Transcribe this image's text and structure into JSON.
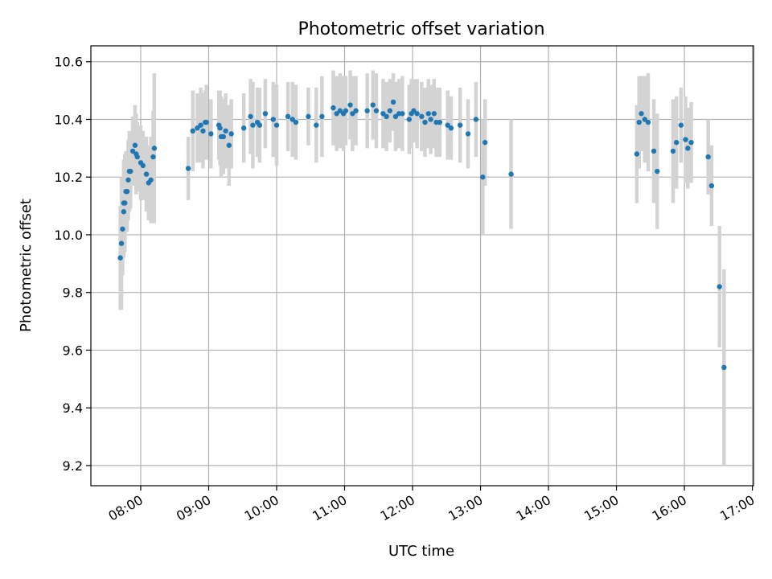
{
  "chart_data": {
    "type": "scatter",
    "title": "Photometric offset variation",
    "xlabel": "UTC time",
    "ylabel": "Photometric offset",
    "xlim": [
      "07:16",
      "17:01"
    ],
    "ylim": [
      9.13,
      10.655
    ],
    "x_ticks": [
      "08:00",
      "09:00",
      "10:00",
      "11:00",
      "12:00",
      "13:00",
      "14:00",
      "15:00",
      "16:00",
      "17:00"
    ],
    "y_ticks": [
      9.2,
      9.4,
      9.6,
      9.8,
      10.0,
      10.2,
      10.4,
      10.6
    ],
    "grid": true,
    "point_color": "#1f77b4",
    "errorbar_color": "#d3d3d3",
    "series": [
      {
        "points": [
          {
            "t": "07:42",
            "y": 9.92,
            "err": 0.18
          },
          {
            "t": "07:43",
            "y": 9.97,
            "err": 0.23
          },
          {
            "t": "07:44",
            "y": 10.02,
            "err": 0.16
          },
          {
            "t": "07:45",
            "y": 10.08,
            "err": 0.16
          },
          {
            "t": "07:45",
            "y": 10.11,
            "err": 0.15
          },
          {
            "t": "07:46",
            "y": 10.11,
            "err": 0.17
          },
          {
            "t": "07:47",
            "y": 10.15,
            "err": 0.14
          },
          {
            "t": "07:48",
            "y": 10.15,
            "err": 0.14
          },
          {
            "t": "07:49",
            "y": 10.19,
            "err": 0.14
          },
          {
            "t": "07:50",
            "y": 10.22,
            "err": 0.14
          },
          {
            "t": "07:51",
            "y": 10.22,
            "err": 0.13
          },
          {
            "t": "07:53",
            "y": 10.29,
            "err": 0.12
          },
          {
            "t": "07:55",
            "y": 10.31,
            "err": 0.14
          },
          {
            "t": "07:56",
            "y": 10.28,
            "err": 0.14
          },
          {
            "t": "07:57",
            "y": 10.27,
            "err": 0.12
          },
          {
            "t": "08:00",
            "y": 10.25,
            "err": 0.13
          },
          {
            "t": "08:02",
            "y": 10.24,
            "err": 0.12
          },
          {
            "t": "08:05",
            "y": 10.21,
            "err": 0.13
          },
          {
            "t": "08:07",
            "y": 10.18,
            "err": 0.13
          },
          {
            "t": "08:09",
            "y": 10.19,
            "err": 0.15
          },
          {
            "t": "08:11",
            "y": 10.27,
            "err": 0.16
          },
          {
            "t": "08:12",
            "y": 10.3,
            "err": 0.26
          },
          {
            "t": "08:42",
            "y": 10.23,
            "err": 0.11
          },
          {
            "t": "08:46",
            "y": 10.36,
            "err": 0.14
          },
          {
            "t": "08:50",
            "y": 10.37,
            "err": 0.12
          },
          {
            "t": "08:53",
            "y": 10.38,
            "err": 0.13
          },
          {
            "t": "08:55",
            "y": 10.36,
            "err": 0.13
          },
          {
            "t": "08:57",
            "y": 10.39,
            "err": 0.11
          },
          {
            "t": "08:58",
            "y": 10.39,
            "err": 0.13
          },
          {
            "t": "09:02",
            "y": 10.35,
            "err": 0.12
          },
          {
            "t": "09:09",
            "y": 10.38,
            "err": 0.12
          },
          {
            "t": "09:10",
            "y": 10.37,
            "err": 0.13
          },
          {
            "t": "09:11",
            "y": 10.34,
            "err": 0.14
          },
          {
            "t": "09:13",
            "y": 10.34,
            "err": 0.13
          },
          {
            "t": "09:15",
            "y": 10.36,
            "err": 0.13
          },
          {
            "t": "09:18",
            "y": 10.31,
            "err": 0.14
          },
          {
            "t": "09:20",
            "y": 10.35,
            "err": 0.12
          },
          {
            "t": "09:31",
            "y": 10.37,
            "err": 0.12
          },
          {
            "t": "09:37",
            "y": 10.41,
            "err": 0.13
          },
          {
            "t": "09:39",
            "y": 10.38,
            "err": 0.15
          },
          {
            "t": "09:43",
            "y": 10.39,
            "err": 0.12
          },
          {
            "t": "09:45",
            "y": 10.38,
            "err": 0.13
          },
          {
            "t": "09:50",
            "y": 10.42,
            "err": 0.12
          },
          {
            "t": "09:57",
            "y": 10.4,
            "err": 0.13
          },
          {
            "t": "10:00",
            "y": 10.38,
            "err": 0.14
          },
          {
            "t": "10:10",
            "y": 10.41,
            "err": 0.12
          },
          {
            "t": "10:14",
            "y": 10.4,
            "err": 0.13
          },
          {
            "t": "10:17",
            "y": 10.39,
            "err": 0.13
          },
          {
            "t": "10:28",
            "y": 10.41,
            "err": 0.1
          },
          {
            "t": "10:35",
            "y": 10.38,
            "err": 0.13
          },
          {
            "t": "10:40",
            "y": 10.41,
            "err": 0.14
          },
          {
            "t": "10:50",
            "y": 10.44,
            "err": 0.13
          },
          {
            "t": "10:53",
            "y": 10.42,
            "err": 0.13
          },
          {
            "t": "10:56",
            "y": 10.43,
            "err": 0.13
          },
          {
            "t": "10:59",
            "y": 10.42,
            "err": 0.13
          },
          {
            "t": "11:01",
            "y": 10.43,
            "err": 0.12
          },
          {
            "t": "11:05",
            "y": 10.45,
            "err": 0.12
          },
          {
            "t": "11:07",
            "y": 10.42,
            "err": 0.13
          },
          {
            "t": "11:10",
            "y": 10.43,
            "err": 0.12
          },
          {
            "t": "11:20",
            "y": 10.43,
            "err": 0.13
          },
          {
            "t": "11:25",
            "y": 10.45,
            "err": 0.12
          },
          {
            "t": "11:28",
            "y": 10.43,
            "err": 0.13
          },
          {
            "t": "11:34",
            "y": 10.42,
            "err": 0.12
          },
          {
            "t": "11:37",
            "y": 10.41,
            "err": 0.12
          },
          {
            "t": "11:40",
            "y": 10.43,
            "err": 0.11
          },
          {
            "t": "11:43",
            "y": 10.46,
            "err": 0.1
          },
          {
            "t": "11:45",
            "y": 10.41,
            "err": 0.12
          },
          {
            "t": "11:48",
            "y": 10.42,
            "err": 0.12
          },
          {
            "t": "11:51",
            "y": 10.42,
            "err": 0.13
          },
          {
            "t": "11:57",
            "y": 10.4,
            "err": 0.12
          },
          {
            "t": "11:59",
            "y": 10.42,
            "err": 0.12
          },
          {
            "t": "12:01",
            "y": 10.43,
            "err": 0.11
          },
          {
            "t": "12:04",
            "y": 10.42,
            "err": 0.12
          },
          {
            "t": "12:08",
            "y": 10.41,
            "err": 0.12
          },
          {
            "t": "12:11",
            "y": 10.39,
            "err": 0.12
          },
          {
            "t": "12:14",
            "y": 10.42,
            "err": 0.12
          },
          {
            "t": "12:16",
            "y": 10.4,
            "err": 0.12
          },
          {
            "t": "12:19",
            "y": 10.42,
            "err": 0.12
          },
          {
            "t": "12:21",
            "y": 10.39,
            "err": 0.12
          },
          {
            "t": "12:24",
            "y": 10.39,
            "err": 0.12
          },
          {
            "t": "12:31",
            "y": 10.38,
            "err": 0.12
          },
          {
            "t": "12:34",
            "y": 10.37,
            "err": 0.11
          },
          {
            "t": "12:42",
            "y": 10.38,
            "err": 0.13
          },
          {
            "t": "12:49",
            "y": 10.35,
            "err": 0.12
          },
          {
            "t": "12:56",
            "y": 10.4,
            "err": 0.13
          },
          {
            "t": "13:02",
            "y": 10.2,
            "err": 0.2
          },
          {
            "t": "13:04",
            "y": 10.32,
            "err": 0.15
          },
          {
            "t": "13:27",
            "y": 10.21,
            "err": 0.19
          },
          {
            "t": "15:18",
            "y": 10.28,
            "err": 0.17
          },
          {
            "t": "15:20",
            "y": 10.39,
            "err": 0.16
          },
          {
            "t": "15:22",
            "y": 10.42,
            "err": 0.13
          },
          {
            "t": "15:25",
            "y": 10.4,
            "err": 0.15
          },
          {
            "t": "15:28",
            "y": 10.39,
            "err": 0.17
          },
          {
            "t": "15:33",
            "y": 10.29,
            "err": 0.18
          },
          {
            "t": "15:36",
            "y": 10.22,
            "err": 0.2
          },
          {
            "t": "15:50",
            "y": 10.29,
            "err": 0.18
          },
          {
            "t": "15:53",
            "y": 10.32,
            "err": 0.16
          },
          {
            "t": "15:57",
            "y": 10.38,
            "err": 0.13
          },
          {
            "t": "16:01",
            "y": 10.33,
            "err": 0.15
          },
          {
            "t": "16:03",
            "y": 10.3,
            "err": 0.14
          },
          {
            "t": "16:06",
            "y": 10.32,
            "err": 0.14
          },
          {
            "t": "16:21",
            "y": 10.27,
            "err": 0.13
          },
          {
            "t": "16:24",
            "y": 10.17,
            "err": 0.14
          },
          {
            "t": "16:31",
            "y": 9.82,
            "err": 0.21
          },
          {
            "t": "16:35",
            "y": 9.54,
            "err": 0.34
          }
        ]
      }
    ]
  }
}
